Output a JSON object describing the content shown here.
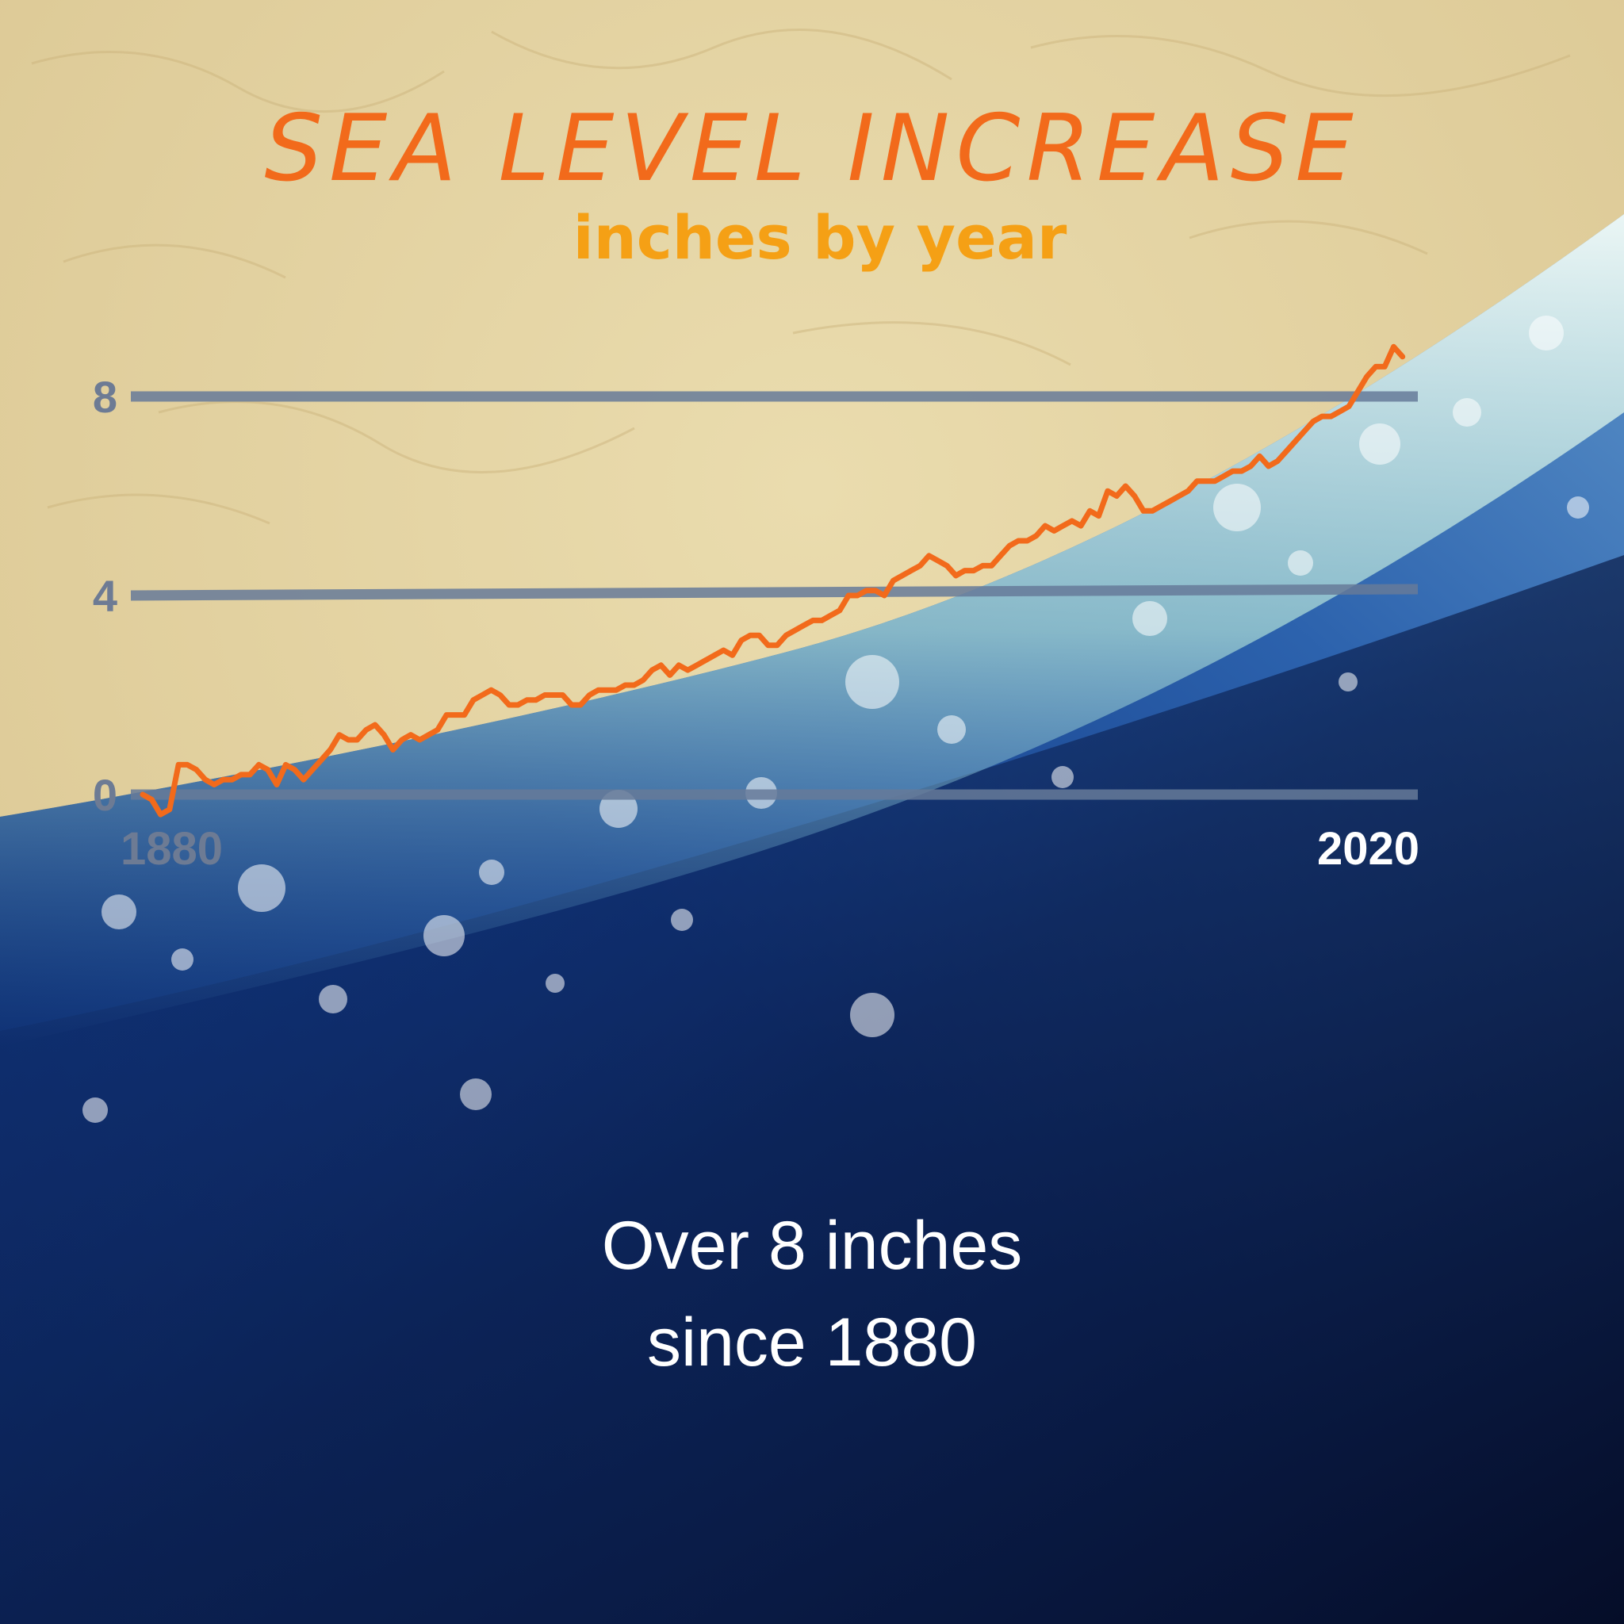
{
  "title": "SEA LEVEL INCREASE",
  "subtitle": "inches by year",
  "caption": {
    "line1": "Over 8 inches",
    "line2": "since 1880"
  },
  "colors": {
    "sand": "#e7d7a6",
    "line": "#f26a1b",
    "subtitle": "#f5a015",
    "gridline": "#667a99",
    "ocean_deep": "#0a1b45",
    "ocean_mid": "#1f4d9a",
    "foam": "#e8f4f4"
  },
  "chart_data": {
    "type": "line",
    "title": "SEA LEVEL INCREASE",
    "subtitle": "inches by year",
    "x_tick_labels": [
      "1880",
      "2020"
    ],
    "y_ticks": [
      0,
      4,
      8
    ],
    "xlim": [
      1880,
      2022
    ],
    "ylim": [
      0,
      8
    ],
    "grid": true,
    "series": [
      {
        "x": [
          1880,
          1881,
          1882,
          1883,
          1884,
          1885,
          1886,
          1887,
          1888,
          1889,
          1890,
          1891,
          1892,
          1893,
          1894,
          1895,
          1896,
          1897,
          1898,
          1899,
          1900,
          1901,
          1902,
          1903,
          1904,
          1905,
          1906,
          1907,
          1908,
          1909,
          1910,
          1911,
          1912,
          1913,
          1914,
          1915,
          1916,
          1917,
          1918,
          1919,
          1920,
          1921,
          1922,
          1923,
          1924,
          1925,
          1926,
          1927,
          1928,
          1929,
          1930,
          1931,
          1932,
          1933,
          1934,
          1935,
          1936,
          1937,
          1938,
          1939,
          1940,
          1941,
          1942,
          1943,
          1944,
          1945,
          1946,
          1947,
          1948,
          1949,
          1950,
          1951,
          1952,
          1953,
          1954,
          1955,
          1956,
          1957,
          1958,
          1959,
          1960,
          1961,
          1962,
          1963,
          1964,
          1965,
          1966,
          1967,
          1968,
          1969,
          1970,
          1971,
          1972,
          1973,
          1974,
          1975,
          1976,
          1977,
          1978,
          1979,
          1980,
          1981,
          1982,
          1983,
          1984,
          1985,
          1986,
          1987,
          1988,
          1989,
          1990,
          1991,
          1992,
          1993,
          1994,
          1995,
          1996,
          1997,
          1998,
          1999,
          2000,
          2001,
          2002,
          2003,
          2004,
          2005,
          2006,
          2007,
          2008,
          2009,
          2010,
          2011,
          2012,
          2013,
          2014,
          2015,
          2016,
          2017,
          2018,
          2019,
          2020,
          2021
        ],
        "values": [
          0.0,
          -0.1,
          -0.4,
          -0.3,
          0.6,
          0.6,
          0.5,
          0.3,
          0.2,
          0.3,
          0.3,
          0.4,
          0.4,
          0.6,
          0.5,
          0.2,
          0.6,
          0.5,
          0.3,
          0.5,
          0.7,
          0.9,
          1.2,
          1.1,
          1.1,
          1.3,
          1.4,
          1.2,
          0.9,
          1.1,
          1.2,
          1.1,
          1.2,
          1.3,
          1.6,
          1.6,
          1.6,
          1.9,
          2.0,
          2.1,
          2.0,
          1.8,
          1.8,
          1.9,
          1.9,
          2.0,
          2.0,
          2.0,
          1.8,
          1.8,
          2.0,
          2.1,
          2.1,
          2.1,
          2.2,
          2.2,
          2.3,
          2.5,
          2.6,
          2.4,
          2.6,
          2.5,
          2.6,
          2.7,
          2.8,
          2.9,
          2.8,
          3.1,
          3.2,
          3.2,
          3.0,
          3.0,
          3.2,
          3.3,
          3.4,
          3.5,
          3.5,
          3.6,
          3.7,
          4.0,
          4.0,
          4.1,
          4.1,
          4.0,
          4.3,
          4.4,
          4.5,
          4.6,
          4.8,
          4.7,
          4.6,
          4.4,
          4.5,
          4.5,
          4.6,
          4.6,
          4.8,
          5.0,
          5.1,
          5.1,
          5.2,
          5.4,
          5.3,
          5.4,
          5.5,
          5.4,
          5.7,
          5.6,
          6.1,
          6.0,
          6.2,
          6.0,
          5.7,
          5.7,
          5.8,
          5.9,
          6.0,
          6.1,
          6.3,
          6.3,
          6.3,
          6.4,
          6.5,
          6.5,
          6.6,
          6.8,
          6.6,
          6.7,
          6.9,
          7.1,
          7.3,
          7.5,
          7.6,
          7.6,
          7.7,
          7.8,
          8.1,
          8.4,
          8.6,
          8.6,
          9.0,
          8.8
        ]
      }
    ]
  }
}
